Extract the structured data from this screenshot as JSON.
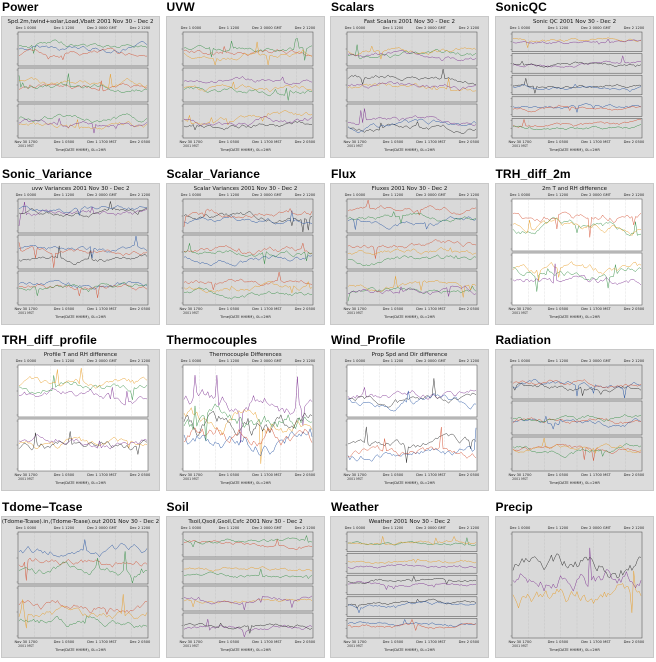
{
  "gallery": {
    "tiles": [
      {
        "label": "Power",
        "plot_title": "Spd.2m,twind+solar,Load,Vbatt 2001 Nov 30 - Dec 2",
        "panels": 3,
        "bg": "#d9d9d9"
      },
      {
        "label": "UVW",
        "plot_title": "",
        "panels": 3,
        "bg": "#d9d9d9"
      },
      {
        "label": "Scalars",
        "plot_title": "Fast Scalars 2001 Nov 30 - Dec 2",
        "panels": 3,
        "bg": "#d9d9d9"
      },
      {
        "label": "SonicQC",
        "plot_title": "Sonic QC 2001 Nov 30 - Dec 2",
        "panels": 5,
        "bg": "#d9d9d9"
      },
      {
        "label": "Sonic_Variance",
        "plot_title": "uvw Variances 2001 Nov 30 - Dec 2",
        "panels": 3,
        "bg": "#d9d9d9"
      },
      {
        "label": "Scalar_Variance",
        "plot_title": "Scalar Variances 2001 Nov 30 - Dec 2",
        "panels": 3,
        "bg": "#d9d9d9"
      },
      {
        "label": "Flux",
        "plot_title": "Fluxes 2001 Nov 30 - Dec 2",
        "panels": 3,
        "bg": "#d9d9d9"
      },
      {
        "label": "TRH_diff_2m",
        "plot_title": "2m T and RH difference",
        "panels": 2,
        "bg": "#ffffff"
      },
      {
        "label": "TRH_diff_profile",
        "plot_title": "Profile T and RH difference",
        "panels": 2,
        "bg": "#ffffff"
      },
      {
        "label": "Thermocouples",
        "plot_title": "Thermocouple Differences",
        "panels": 1,
        "bg": "#ffffff"
      },
      {
        "label": "Wind_Profile",
        "plot_title": "Prop Spd and Dir difference",
        "panels": 2,
        "bg": "#ffffff"
      },
      {
        "label": "Radiation",
        "plot_title": "",
        "panels": 3,
        "bg": "#d9d9d9"
      },
      {
        "label": "Tdome−Tcase",
        "plot_title": "(Tdome-Tcase).in,(Tdome-Tcase).out 2001 Nov 30 - Dec 2",
        "panels": 2,
        "bg": "#d9d9d9"
      },
      {
        "label": "Soil",
        "plot_title": "Tsoil,Qsoil,Gsoil,Csfc 2001 Nov 30 - Dec 2",
        "panels": 4,
        "bg": "#d9d9d9"
      },
      {
        "label": "Weather",
        "plot_title": "Weather 2001 Nov 30 - Dec 2",
        "panels": 5,
        "bg": "#d9d9d9"
      },
      {
        "label": "Precip",
        "plot_title": "",
        "panels": 1,
        "bg": "#d9d9d9"
      }
    ],
    "top_ticks": [
      "Dec 1 0000",
      "Dec 1 1200",
      "Dec 2 0000 GMT",
      "Dec 2 1200"
    ],
    "bottom_ticks": [
      "Nov 30 1700",
      "Dec 1 0500",
      "Dec 1 1700 MST",
      "Dec 2 0500"
    ],
    "bottom_sub": "2001 MST",
    "xlabel": "Time(DATE HHMM), 0L=2HR",
    "series_colors": [
      "#1f4fa0",
      "#d24a2a",
      "#2e8b3e",
      "#e89a1e",
      "#7b2d8e",
      "#222222"
    ]
  },
  "chart_data": {
    "type": "line",
    "note_free": true,
    "x_range": [
      "2001 Nov 30 1700 MST",
      "2001 Dec 2 0500 MST"
    ]
  }
}
